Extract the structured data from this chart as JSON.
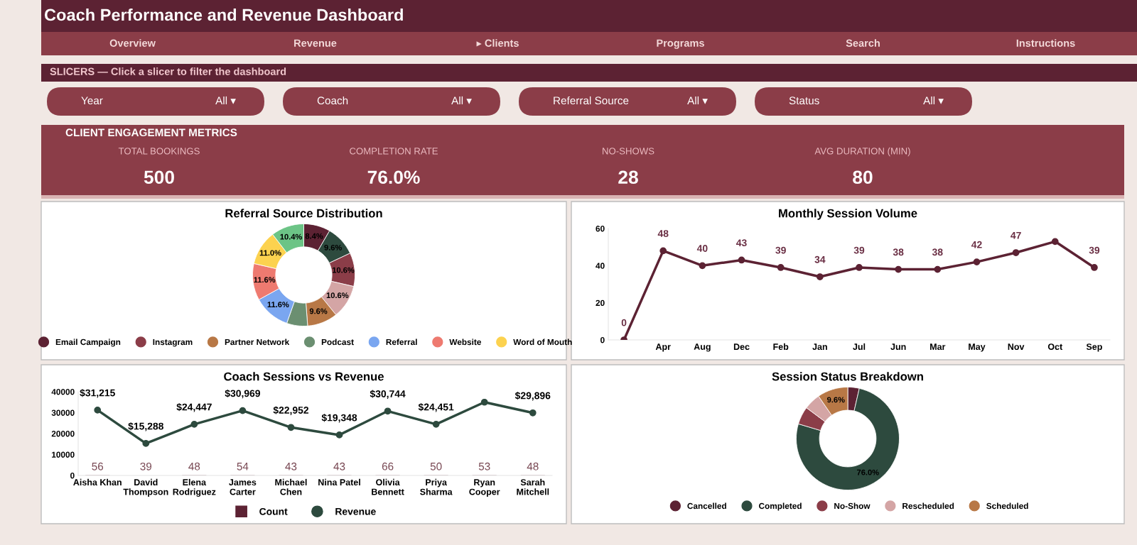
{
  "chart_data": [
    {
      "type": "other",
      "title": "Coach Performance and Revenue Dashboard",
      "annotations": [
        "Overview",
        "Revenue",
        "▸ Clients",
        "Programs",
        "Search",
        "Instructions"
      ]
    },
    {
      "type": "other",
      "title": "SLICERS — Click a slicer to filter the dashboard",
      "annotations": [
        "Year",
        "All ▾",
        "Coach",
        "All ▾",
        "Referral Source",
        "All ▾",
        "Status",
        "All ▾"
      ]
    },
    {
      "type": "other",
      "title": "CLIENT ENGAGEMENT METRICS",
      "annotations": [
        "TOTAL BOOKINGS",
        "500",
        "COMPLETION RATE",
        "76.0%",
        "NO-SHOWS",
        "28",
        "AVG DURATION (MIN)",
        "80"
      ]
    },
    {
      "type": "donut",
      "title": "Referral Source Distribution",
      "legend": "bottom",
      "categories": [
        "Email Campaign",
        null,
        "Instagram",
        null,
        "Partner Network",
        "Podcast",
        "Referral",
        "Website",
        "Word of Mouth",
        null
      ],
      "values": [
        8.4,
        9.6,
        10.6,
        10.6,
        9.6,
        6.6,
        11.6,
        11.6,
        11.0,
        10.4
      ],
      "value_labels": [
        "8.4%",
        "9.6%",
        "10.6%",
        "10.6%",
        "9.6%",
        null,
        "11.6%",
        "11.6%",
        "11.0%",
        "10.4%"
      ],
      "colors": [
        "#5c2233",
        "#2d4a3e",
        "#8b3d48",
        "#d4a5a5",
        "#b87846",
        "#6b8f71",
        "#7aa6f0",
        "#ee7a70",
        "#fcd24f",
        "#6cc486"
      ]
    },
    {
      "type": "line",
      "title": "Monthly Session Volume",
      "marker": "circle",
      "line_style": "solid",
      "categories": [
        null,
        "Apr",
        "Aug",
        "Dec",
        "Feb",
        "Jan",
        "Jul",
        "Jun",
        "Mar",
        "May",
        "Nov",
        "Oct",
        "Sep"
      ],
      "series": [
        {
          "color": "#5c2233",
          "values": [
            0,
            48,
            40,
            43,
            39,
            34,
            39,
            38,
            38,
            42,
            47,
            53,
            39
          ],
          "value_labels": [
            "0",
            "48",
            "40",
            "43",
            "39",
            "34",
            "39",
            "38",
            "38",
            "42",
            "47",
            null,
            "39"
          ]
        }
      ],
      "ylim": [
        0,
        60
      ],
      "yticks": [
        0,
        20,
        40,
        60
      ]
    },
    {
      "type": "line",
      "title": "Coach Sessions vs Revenue",
      "marker": "circle",
      "legend": "bottom",
      "categories": [
        "Aisha Khan",
        "David Thompson",
        "Elena Rodriguez",
        "James Carter",
        "Michael Chen",
        "Nina Patel",
        "Olivia Bennett",
        "Priya Sharma",
        "Ryan Cooper",
        "Sarah Mitchell"
      ],
      "series": [
        {
          "name": "Count",
          "type": "bar",
          "color": "#5c2233",
          "values": [
            56,
            39,
            48,
            54,
            43,
            43,
            66,
            50,
            53,
            48
          ],
          "value_labels": [
            "56",
            "39",
            "48",
            "54",
            "43",
            "43",
            "66",
            "50",
            "53",
            "48"
          ]
        },
        {
          "name": "Revenue",
          "type": "line",
          "color": "#2d4a3e",
          "values": [
            31215,
            15288,
            24447,
            30969,
            22952,
            19348,
            30744,
            24451,
            35000,
            29896
          ],
          "value_labels": [
            "$31,215",
            "$15,288",
            "$24,447",
            "$30,969",
            "$22,952",
            "$19,348",
            "$30,744",
            "$24,451",
            null,
            "$29,896"
          ]
        }
      ],
      "ylim": [
        0,
        40000
      ],
      "yticks": [
        0,
        10000,
        20000,
        30000,
        40000
      ]
    },
    {
      "type": "donut",
      "title": "Session Status Breakdown",
      "legend": "bottom",
      "categories": [
        "Cancelled",
        "Completed",
        "No-Show",
        "Rescheduled",
        "Scheduled"
      ],
      "values": [
        3.6,
        76.0,
        5.6,
        5.2,
        9.6
      ],
      "value_labels": [
        null,
        "76.0%",
        null,
        null,
        "9.6%"
      ],
      "colors": [
        "#5c2233",
        "#2d4a3e",
        "#8b3d48",
        "#d4a5a5",
        "#b87846"
      ]
    }
  ]
}
